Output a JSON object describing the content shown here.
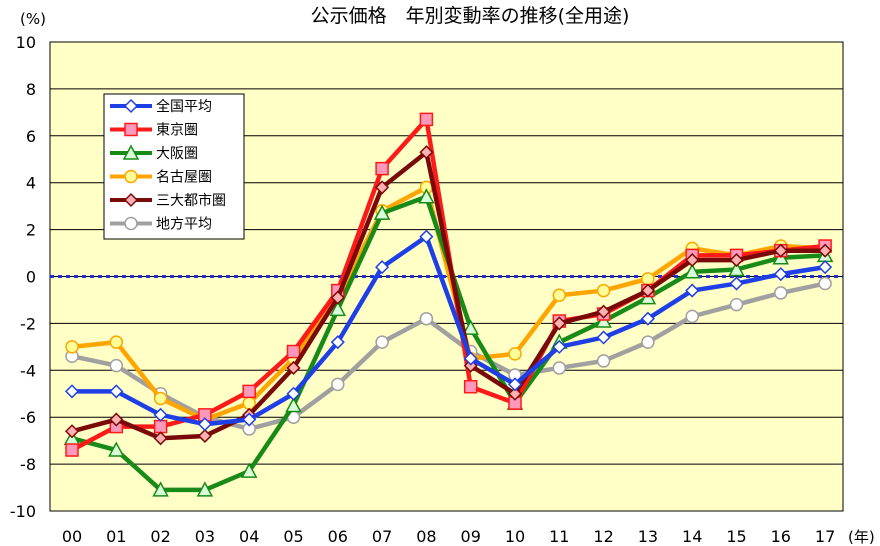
{
  "chart_data": {
    "type": "line",
    "title": "公示価格　年別変動率の推移(全用途)",
    "ylabel": "(%)",
    "xunit": "(年)",
    "categories": [
      "00",
      "01",
      "02",
      "03",
      "04",
      "05",
      "06",
      "07",
      "08",
      "09",
      "10",
      "11",
      "12",
      "13",
      "14",
      "15",
      "16",
      "17"
    ],
    "ylim": [
      -10,
      10
    ],
    "yticks": [
      10,
      8,
      6,
      4,
      2,
      0,
      -2,
      -4,
      -6,
      -8,
      -10
    ],
    "grid": true,
    "legend_position": "top-left",
    "reference_line": 0,
    "series": [
      {
        "name": "全国平均",
        "color": "#1f3fe6",
        "marker": "diamond",
        "values": [
          -4.9,
          -4.9,
          -5.9,
          -6.3,
          -6.1,
          -5.0,
          -2.8,
          0.4,
          1.7,
          -3.5,
          -4.6,
          -3.0,
          -2.6,
          -1.8,
          -0.6,
          -0.3,
          0.1,
          0.4
        ]
      },
      {
        "name": "東京圏",
        "color": "#ff1a1a",
        "marker": "square",
        "values": [
          -7.4,
          -6.4,
          -6.4,
          -5.9,
          -4.9,
          -3.2,
          -0.6,
          4.6,
          6.7,
          -4.7,
          -5.4,
          -1.9,
          -1.6,
          -0.6,
          0.9,
          0.9,
          1.1,
          1.3
        ]
      },
      {
        "name": "大阪圏",
        "color": "#178a17",
        "marker": "triangle",
        "values": [
          -6.9,
          -7.4,
          -9.1,
          -9.1,
          -8.3,
          -5.5,
          -1.4,
          2.7,
          3.4,
          -2.2,
          -5.4,
          -2.8,
          -1.9,
          -0.9,
          0.2,
          0.3,
          0.8,
          0.9
        ]
      },
      {
        "name": "名古屋圏",
        "color": "#ffa500",
        "marker": "circle",
        "values": [
          -3.0,
          -2.8,
          -5.2,
          -6.1,
          -5.4,
          -3.5,
          -0.9,
          2.8,
          3.8,
          -3.5,
          -3.3,
          -0.8,
          -0.6,
          -0.1,
          1.2,
          0.9,
          1.3,
          1.2
        ]
      },
      {
        "name": "三大都市圏",
        "color": "#7a0a0a",
        "marker": "diamond",
        "values": [
          -6.6,
          -6.1,
          -6.9,
          -6.8,
          -5.9,
          -3.9,
          -0.9,
          3.8,
          5.3,
          -3.8,
          -5.0,
          -2.0,
          -1.5,
          -0.6,
          0.7,
          0.7,
          1.1,
          1.1
        ]
      },
      {
        "name": "地方平均",
        "color": "#a0a0a0",
        "marker": "circle",
        "values": [
          -3.4,
          -3.8,
          -5.0,
          -6.0,
          -6.5,
          -6.0,
          -4.6,
          -2.8,
          -1.8,
          -3.2,
          -4.2,
          -3.9,
          -3.6,
          -2.8,
          -1.7,
          -1.2,
          -0.7,
          -0.3
        ]
      }
    ]
  }
}
